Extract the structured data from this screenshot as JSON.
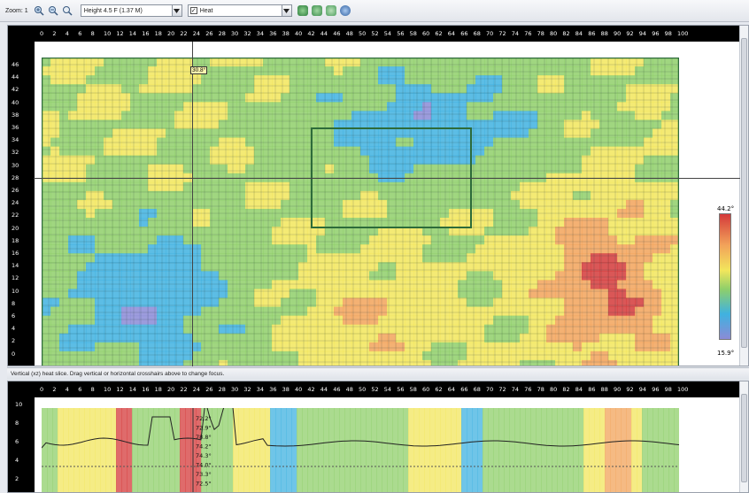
{
  "toolbar": {
    "zoom_label": "Zoom: 1",
    "height_option": "Height 4.5 F (1.37 M)",
    "heat_option": "Heat",
    "heat_checked": "✓"
  },
  "ruler": {
    "x_ticks": [
      "0",
      "2",
      "4",
      "6",
      "8",
      "10",
      "12",
      "14",
      "16",
      "18",
      "20",
      "22",
      "24",
      "26",
      "28",
      "30",
      "32",
      "34",
      "36",
      "38",
      "40",
      "42",
      "44",
      "46",
      "48",
      "50",
      "52",
      "54",
      "56",
      "58",
      "60",
      "62",
      "64",
      "66",
      "68",
      "70",
      "72",
      "74",
      "76",
      "78",
      "80",
      "82",
      "84",
      "86",
      "88",
      "90",
      "92",
      "94",
      "96",
      "98",
      "100"
    ],
    "y_ticks": [
      "46",
      "44",
      "42",
      "40",
      "38",
      "36",
      "34",
      "32",
      "30",
      "28",
      "26",
      "24",
      "22",
      "20",
      "18",
      "16",
      "14",
      "12",
      "10",
      "8",
      "6",
      "4",
      "2",
      "0"
    ],
    "slice_y_ticks": [
      "10",
      "8",
      "6",
      "4",
      "2"
    ]
  },
  "heatmap": {
    "cursor_readout": "30.8°",
    "legend_max": "44.2°",
    "legend_min": "15.9°",
    "crosshair_x": 24,
    "crosshair_y": 28,
    "colors": {
      "hot": "#d43a3a",
      "warm": "#f2a35a",
      "mid": "#f2e65c",
      "cool": "#8fcf6a",
      "cold": "#3fb2e0",
      "coldest": "#8b8bd6"
    }
  },
  "hint": "Vertical (xz) heat slice.  Drag vertical or horizontal crosshairs above to change focus.",
  "slice": {
    "readouts": [
      "72.2°",
      "72.9°",
      "78.8°",
      "74.2°",
      "74.3°",
      "74.0°",
      "73.3°",
      "72.5°"
    ]
  }
}
